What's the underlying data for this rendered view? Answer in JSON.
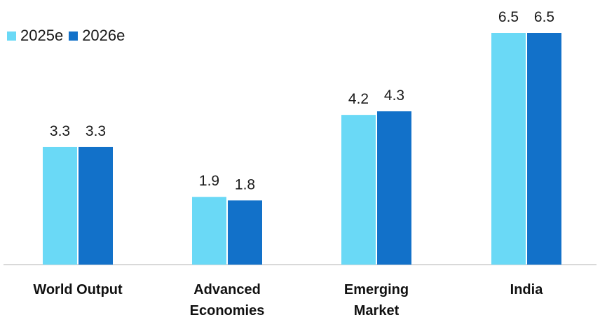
{
  "chart_data": {
    "type": "bar",
    "categories": [
      [
        "World Output"
      ],
      [
        "Advanced",
        "Economies"
      ],
      [
        "Emerging",
        "Market"
      ],
      [
        "India"
      ]
    ],
    "series": [
      {
        "name": "2025e",
        "color": "#6ad9f6",
        "values": [
          3.3,
          1.9,
          4.2,
          6.5
        ],
        "labels": [
          "3.3",
          "1.9",
          "4.2",
          "6.5"
        ]
      },
      {
        "name": "2026e",
        "color": "#1271c9",
        "values": [
          3.3,
          1.8,
          4.3,
          6.5
        ],
        "labels": [
          "3.3",
          "1.8",
          "4.3",
          "6.5"
        ]
      }
    ],
    "ylim": [
      0,
      6.5
    ],
    "grid": false,
    "legend_position": "top-left",
    "axis_color": "#d9d9d9"
  }
}
